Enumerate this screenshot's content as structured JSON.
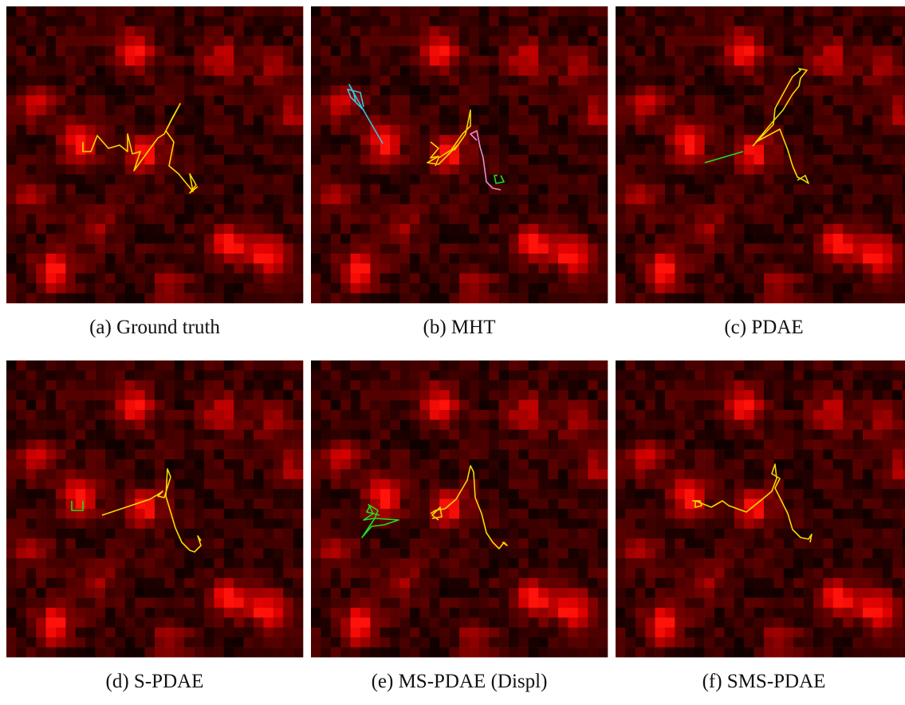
{
  "panels": [
    {
      "caption": "(a) Ground truth"
    },
    {
      "caption": "(b) MHT"
    },
    {
      "caption": "(c) PDAE"
    },
    {
      "caption": "(d) S-PDAE"
    },
    {
      "caption": "(e) MS-PDAE (Displ)"
    },
    {
      "caption": "(f) SMS-PDAE"
    }
  ]
}
